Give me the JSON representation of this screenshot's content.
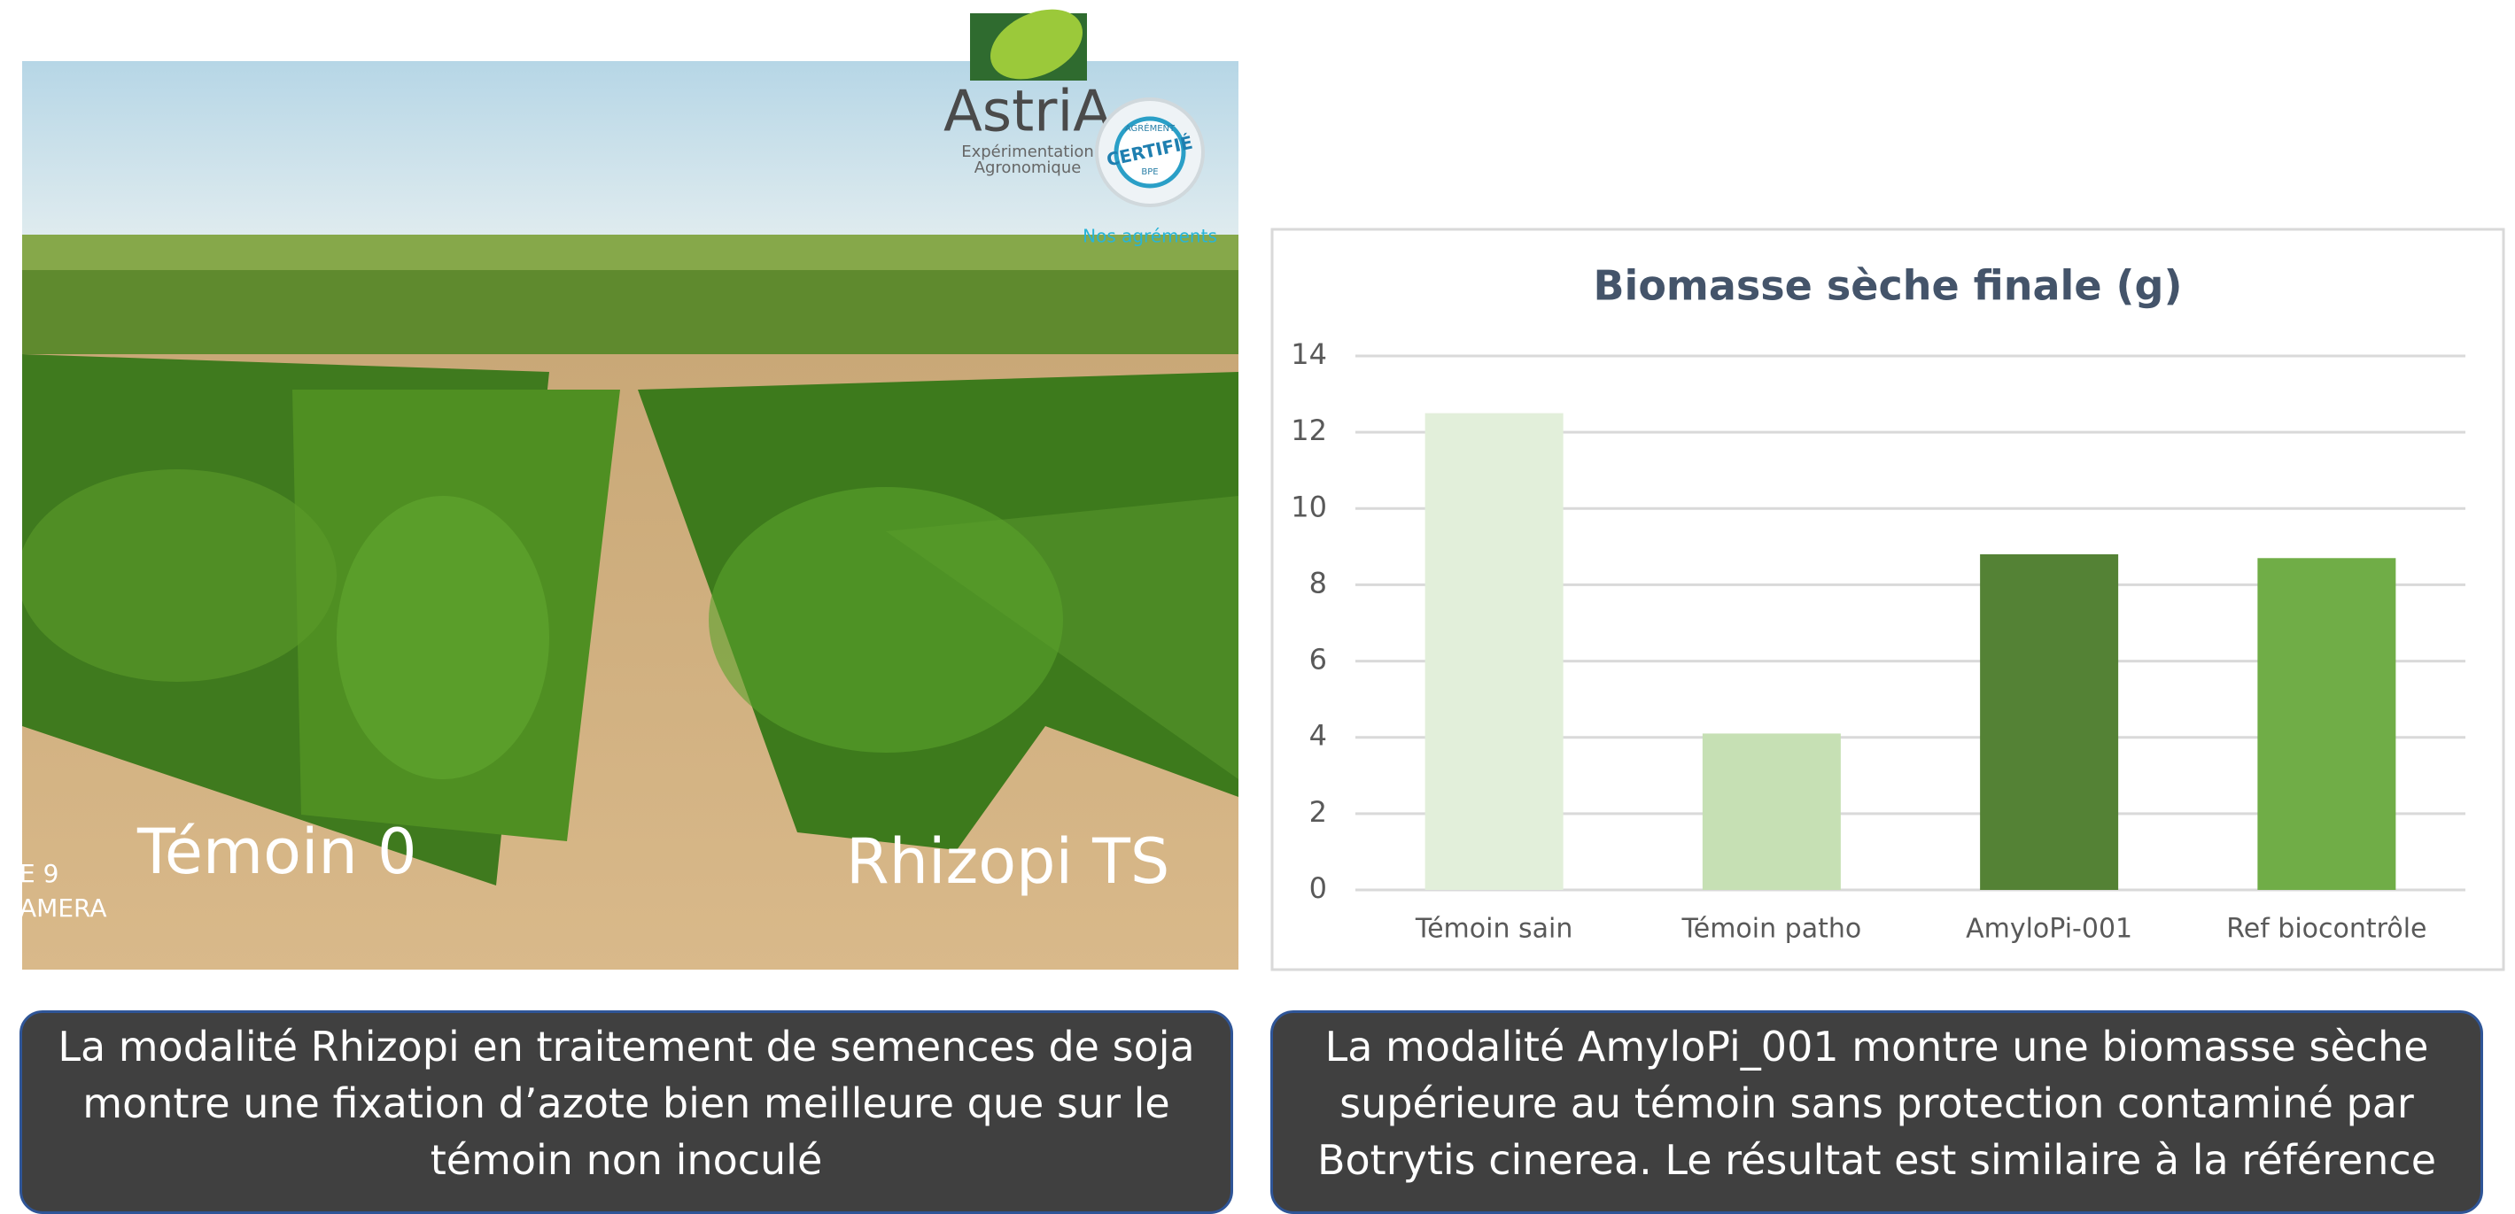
{
  "photo": {
    "logo_name": "AstriA",
    "logo_sub": [
      "Expérimentation",
      "Agronomique"
    ],
    "badge_top": "AGRÉMENT",
    "badge": "CERTIFIÉ",
    "badge_code": "BPE",
    "agrements": "Nos agréments",
    "label_left": "Témoin 0",
    "label_right": "Rhizopi TS",
    "stamp": [
      "E 9",
      "AMERA"
    ]
  },
  "chart_data": {
    "type": "bar",
    "title": "Biomasse sèche finale (g)",
    "categories": [
      "Témoin sain",
      "Témoin patho",
      "AmyloPi-001",
      "Ref biocontrôle"
    ],
    "values": [
      12.5,
      4.1,
      8.8,
      8.7
    ],
    "colors": [
      "#e2efda",
      "#c6e0b4",
      "#548235",
      "#70ad47"
    ],
    "ylim": [
      0,
      14
    ],
    "yticks": [
      0,
      2,
      4,
      6,
      8,
      10,
      12,
      14
    ],
    "grid": true
  },
  "captions": [
    {
      "lines": [
        "La modalité Rhizopi en traitement de semences de soja",
        "montre une fixation d’azote bien meilleure que sur le",
        "témoin non inoculé"
      ]
    },
    {
      "lines": [
        "La modalité AmyloPi_001 montre une biomasse sèche",
        "supérieure au témoin sans protection contaminé par",
        "Botrytis cinerea. Le résultat est similaire à la référence"
      ]
    }
  ]
}
